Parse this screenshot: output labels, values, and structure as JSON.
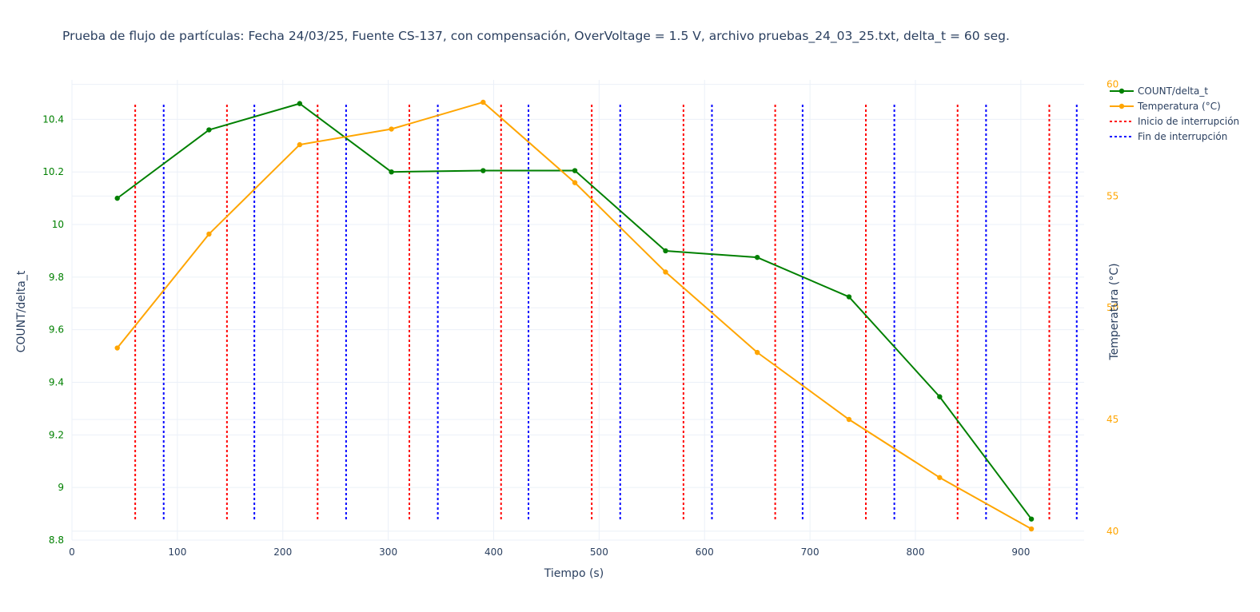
{
  "chart_data": {
    "type": "line",
    "title": "Prueba de flujo de partículas: Fecha 24/03/25, Fuente CS-137, con compensación, OverVoltage = 1.5 V, archivo pruebas_24_03_25.txt, delta_t = 60 seg.",
    "xlabel": "Tiempo (s)",
    "ylabel": "COUNT/delta_t",
    "y2label": "Temperatura (°C)",
    "xlim": [
      0,
      960
    ],
    "ylim": [
      8.8,
      10.55
    ],
    "y2lim": [
      39.6,
      60.2
    ],
    "x_ticks": [
      0,
      100,
      200,
      300,
      400,
      500,
      600,
      700,
      800,
      900
    ],
    "y_ticks": [
      8.8,
      9,
      9.2,
      9.4,
      9.6,
      9.8,
      10,
      10.2,
      10.4
    ],
    "y_tick_labels": [
      "8.8",
      "9",
      "9.2",
      "9.4",
      "9.6",
      "9.8",
      "10",
      "10.2",
      "10.4"
    ],
    "y2_ticks": [
      40,
      45,
      50,
      55,
      60
    ],
    "grid": true,
    "legend_position": "top-right",
    "series": [
      {
        "name": "COUNT/delta_t",
        "axis": "y",
        "color": "#008000",
        "x": [
          43,
          130,
          216,
          303,
          390,
          477,
          563,
          650,
          737,
          823,
          910
        ],
        "values": [
          10.1,
          10.36,
          10.46,
          10.2,
          10.205,
          10.205,
          9.9,
          9.875,
          9.725,
          9.345,
          8.88
        ]
      },
      {
        "name": "Temperatura (°C)",
        "axis": "y2",
        "color": "#ffa500",
        "x": [
          43,
          130,
          216,
          303,
          390,
          477,
          563,
          650,
          737,
          823,
          910
        ],
        "values": [
          48.2,
          53.3,
          57.3,
          58.0,
          59.2,
          55.6,
          51.6,
          48.0,
          45.0,
          42.4,
          40.1
        ]
      }
    ],
    "vlines": [
      {
        "name": "Inicio de interrupción",
        "color": "#ff0000",
        "x": [
          60,
          147,
          233,
          320,
          407,
          493,
          580,
          667,
          753,
          840,
          927
        ]
      },
      {
        "name": "Fin de interrupción",
        "color": "#0000ff",
        "x": [
          87,
          173,
          260,
          347,
          433,
          520,
          607,
          693,
          780,
          867,
          953
        ]
      }
    ]
  },
  "colors": {
    "text": "#2a3f5f",
    "grid": "#ebf0f8",
    "zeroline": "#ebf0f8",
    "y_axis_ticks": "#008000",
    "y2_axis_ticks": "#ffa500"
  }
}
